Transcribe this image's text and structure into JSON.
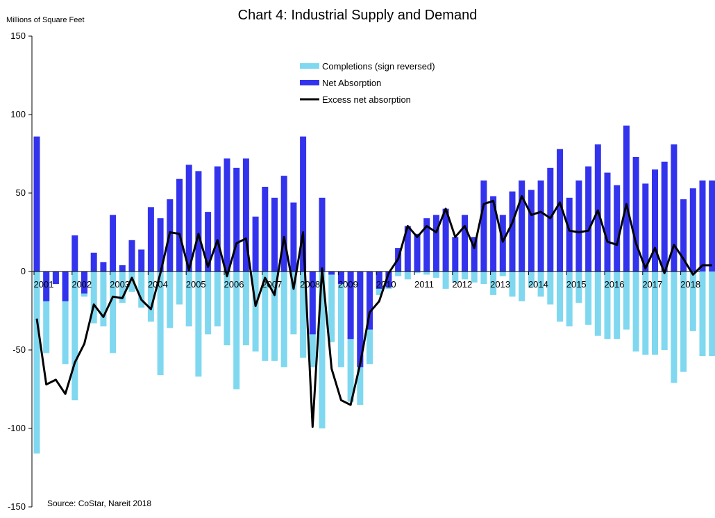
{
  "chart_data": {
    "type": "bar",
    "title": "Chart 4: Industrial Supply and Demand",
    "ylabel": "Millions of Square Feet",
    "source": "Source: CoStar, Nareit 2018",
    "ylim": [
      -150,
      150
    ],
    "yticks": [
      150,
      100,
      50,
      0,
      -50,
      -100,
      -150
    ],
    "year_labels": [
      "2001",
      "2002",
      "2003",
      "2004",
      "2005",
      "2006",
      "2007",
      "2008",
      "2009",
      "2010",
      "2011",
      "2012",
      "2013",
      "2014",
      "2015",
      "2016",
      "2017",
      "2018"
    ],
    "quarters": [
      "2001 Q1",
      "2001 Q2",
      "2001 Q3",
      "2001 Q4",
      "2002 Q1",
      "2002 Q2",
      "2002 Q3",
      "2002 Q4",
      "2003 Q1",
      "2003 Q2",
      "2003 Q3",
      "2003 Q4",
      "2004 Q1",
      "2004 Q2",
      "2004 Q3",
      "2004 Q4",
      "2005 Q1",
      "2005 Q2",
      "2005 Q3",
      "2005 Q4",
      "2006 Q1",
      "2006 Q2",
      "2006 Q3",
      "2006 Q4",
      "2007 Q1",
      "2007 Q2",
      "2007 Q3",
      "2007 Q4",
      "2008 Q1",
      "2008 Q2",
      "2008 Q3",
      "2008 Q4",
      "2009 Q1",
      "2009 Q2",
      "2009 Q3",
      "2009 Q4",
      "2010 Q1",
      "2010 Q2",
      "2010 Q3",
      "2010 Q4",
      "2011 Q1",
      "2011 Q2",
      "2011 Q3",
      "2011 Q4",
      "2012 Q1",
      "2012 Q2",
      "2012 Q3",
      "2012 Q4",
      "2013 Q1",
      "2013 Q2",
      "2013 Q3",
      "2013 Q4",
      "2014 Q1",
      "2014 Q2",
      "2014 Q3",
      "2014 Q4",
      "2015 Q1",
      "2015 Q2",
      "2015 Q3",
      "2015 Q4",
      "2016 Q1",
      "2016 Q2",
      "2016 Q3",
      "2016 Q4",
      "2017 Q1",
      "2017 Q2",
      "2017 Q3",
      "2017 Q4",
      "2018 Q1",
      "2018 Q2",
      "2018 Q3",
      "2018 Q4"
    ],
    "legend": {
      "position": "top-center"
    },
    "series": [
      {
        "name": "Completions (sign reversed)",
        "type": "bar",
        "color": "#7fd8ef",
        "values": [
          -116,
          -52,
          -8,
          -59,
          -82,
          -16,
          -33,
          -35,
          -52,
          -20,
          -13,
          -23,
          -32,
          -66,
          -36,
          -21,
          -35,
          -67,
          -40,
          -35,
          -47,
          -75,
          -47,
          -51,
          -57,
          -57,
          -61,
          -40,
          -55,
          -61,
          -100,
          -45,
          -61,
          -83,
          -85,
          -59,
          -15,
          -11,
          -3,
          -5,
          -1,
          -2,
          -4,
          -11,
          -7,
          -5,
          -7,
          -8,
          -15,
          -3,
          -16,
          -19,
          -10,
          -16,
          -21,
          -32,
          -35,
          -20,
          -34,
          -41,
          -43,
          -43,
          -37,
          -51,
          -53,
          -53,
          -50,
          -71,
          -64,
          -38,
          -54,
          -54
        ]
      },
      {
        "name": "Net Absorption",
        "type": "bar",
        "color": "#3333ee",
        "values": [
          86,
          -19,
          -8,
          -19,
          23,
          -14,
          12,
          6,
          36,
          4,
          20,
          14,
          41,
          34,
          46,
          59,
          68,
          64,
          38,
          67,
          72,
          66,
          72,
          35,
          54,
          47,
          61,
          44,
          86,
          -40,
          47,
          -2,
          -8,
          -43,
          -61,
          -37,
          -11,
          -10,
          15,
          29,
          24,
          34,
          36,
          40,
          22,
          36,
          22,
          58,
          48,
          36,
          51,
          58,
          52,
          58,
          66,
          78,
          47,
          58,
          67,
          81,
          63,
          55,
          93,
          73,
          56,
          65,
          70,
          81,
          46,
          53,
          58,
          58
        ]
      },
      {
        "name": "Excess net absorption",
        "type": "line",
        "color": "#000000",
        "values": [
          -30,
          -72,
          -69,
          -78,
          -58,
          -46,
          -21,
          -29,
          -16,
          -17,
          -4,
          -18,
          -24,
          -1,
          25,
          24,
          1,
          24,
          3,
          20,
          -3,
          18,
          21,
          -22,
          -4,
          -15,
          22,
          -11,
          25,
          -99,
          2,
          -62,
          -82,
          -85,
          -59,
          -26,
          -19,
          -1,
          8,
          29,
          22,
          29,
          25,
          40,
          22,
          29,
          15,
          43,
          45,
          19,
          31,
          48,
          36,
          38,
          34,
          44,
          26,
          25,
          26,
          39,
          19,
          17,
          43,
          18,
          2,
          15,
          -1,
          17,
          8,
          -2,
          4,
          4
        ]
      }
    ]
  }
}
